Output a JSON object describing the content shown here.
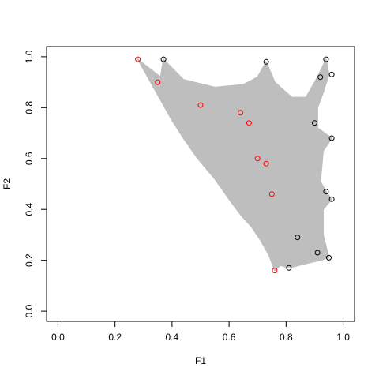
{
  "chart_data": {
    "type": "scatter",
    "title": "",
    "xlabel": "F1",
    "ylabel": "F2",
    "xlim": [
      -0.04,
      1.04
    ],
    "ylim": [
      -0.04,
      1.04
    ],
    "x_ticks": [
      "0.0",
      "0.2",
      "0.4",
      "0.6",
      "0.8",
      "1.0"
    ],
    "y_ticks": [
      "0.0",
      "0.2",
      "0.4",
      "0.6",
      "0.8",
      "1.0"
    ],
    "grid": false,
    "legend": null,
    "region": {
      "description": "attainable region (dense gray point cloud)",
      "color": "#bebebe",
      "outline": [
        [
          0.28,
          0.99
        ],
        [
          0.36,
          0.92
        ],
        [
          0.37,
          0.99
        ],
        [
          0.44,
          0.91
        ],
        [
          0.55,
          0.88
        ],
        [
          0.65,
          0.89
        ],
        [
          0.7,
          0.92
        ],
        [
          0.73,
          0.98
        ],
        [
          0.76,
          0.9
        ],
        [
          0.82,
          0.84
        ],
        [
          0.87,
          0.84
        ],
        [
          0.91,
          0.92
        ],
        [
          0.94,
          0.99
        ],
        [
          0.95,
          0.93
        ],
        [
          0.93,
          0.86
        ],
        [
          0.91,
          0.8
        ],
        [
          0.91,
          0.72
        ],
        [
          0.96,
          0.68
        ],
        [
          0.93,
          0.63
        ],
        [
          0.92,
          0.51
        ],
        [
          0.94,
          0.47
        ],
        [
          0.96,
          0.44
        ],
        [
          0.93,
          0.4
        ],
        [
          0.93,
          0.3
        ],
        [
          0.95,
          0.21
        ],
        [
          0.92,
          0.2
        ],
        [
          0.88,
          0.19
        ],
        [
          0.81,
          0.17
        ],
        [
          0.78,
          0.18
        ],
        [
          0.76,
          0.16
        ],
        [
          0.74,
          0.22
        ],
        [
          0.71,
          0.28
        ],
        [
          0.68,
          0.33
        ],
        [
          0.64,
          0.38
        ],
        [
          0.6,
          0.44
        ],
        [
          0.55,
          0.52
        ],
        [
          0.49,
          0.6
        ],
        [
          0.44,
          0.68
        ],
        [
          0.4,
          0.75
        ],
        [
          0.37,
          0.81
        ],
        [
          0.34,
          0.87
        ],
        [
          0.3,
          0.95
        ]
      ]
    },
    "series": [
      {
        "color": "#000000",
        "x": [
          0.37,
          0.73,
          0.94,
          0.96,
          0.92,
          0.9,
          0.96,
          0.94,
          0.96,
          0.84,
          0.91,
          0.95,
          0.81
        ],
        "y": [
          0.99,
          0.98,
          0.99,
          0.93,
          0.92,
          0.74,
          0.68,
          0.47,
          0.44,
          0.29,
          0.23,
          0.21,
          0.17
        ]
      },
      {
        "color": "#ff0000",
        "x": [
          0.28,
          0.35,
          0.5,
          0.64,
          0.67,
          0.7,
          0.73,
          0.75,
          0.76
        ],
        "y": [
          0.99,
          0.9,
          0.81,
          0.78,
          0.74,
          0.6,
          0.58,
          0.46,
          0.16
        ]
      }
    ]
  }
}
